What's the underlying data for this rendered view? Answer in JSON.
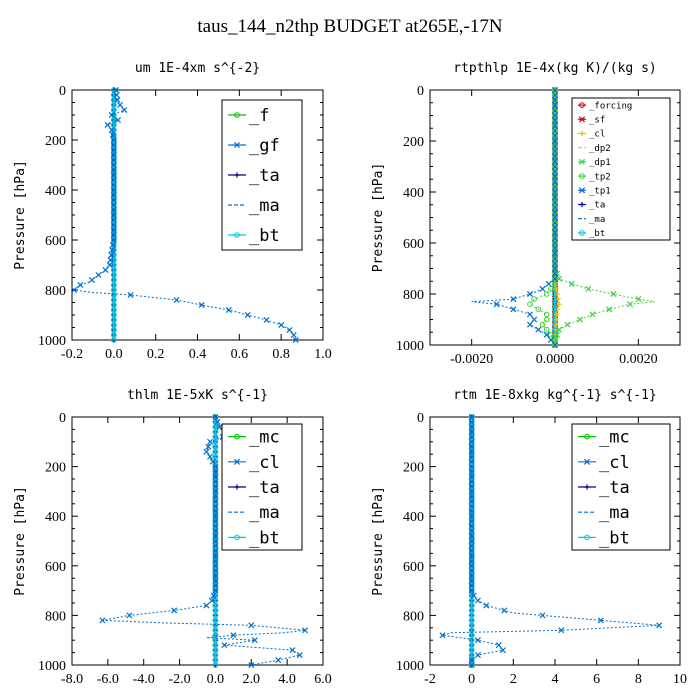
{
  "title": "taus_144_n2thp  BUDGET at265E,-17N",
  "colors": {
    "green": "#00c000",
    "blue": "#0070d0",
    "navy": "#000090",
    "cyan": "#00c8e8",
    "red": "#d00000",
    "yellow": "#f0c000",
    "lightgreen": "#40d040"
  },
  "chart_data": [
    {
      "type": "line",
      "title": "um  1E-4xm s^{-2}",
      "ylabel": "Pressure [hPa]",
      "xlim": [
        -0.2,
        1.0
      ],
      "ylim": [
        1000,
        0
      ],
      "xticks": [
        -0.2,
        0.0,
        0.2,
        0.4,
        0.6,
        0.8,
        1.0
      ],
      "xtick_labels": [
        "-0.2",
        "0.0",
        "0.2",
        "0.4",
        "0.6",
        "0.8",
        "1.0"
      ],
      "yticks": [
        0,
        200,
        400,
        600,
        800,
        1000
      ],
      "ytick_labels": [
        "0",
        "200",
        "400",
        "600",
        "800",
        "1000"
      ],
      "legend_position": "top-right",
      "legend_font": 17,
      "series": [
        {
          "name": "_f",
          "color": "green",
          "marker": "o",
          "y": [
            0,
            1000
          ],
          "x": [
            0,
            0
          ]
        },
        {
          "name": "_gf",
          "color": "blue",
          "marker": "x",
          "y": [
            0,
            50,
            80,
            100,
            120,
            140,
            160,
            200,
            300,
            400,
            500,
            600,
            650,
            700,
            720,
            750,
            770,
            780,
            790,
            800,
            810,
            820,
            840,
            860,
            880,
            900,
            920,
            940,
            960,
            980,
            1000
          ],
          "x": [
            0.01,
            0.02,
            0.05,
            -0.01,
            0.02,
            -0.03,
            -0.01,
            0.0,
            0.0,
            0.0,
            0.0,
            0.0,
            -0.01,
            -0.02,
            -0.04,
            -0.09,
            -0.12,
            -0.16,
            -0.18,
            -0.19,
            -0.1,
            0.08,
            0.3,
            0.42,
            0.55,
            0.64,
            0.73,
            0.8,
            0.84,
            0.86,
            0.87
          ]
        },
        {
          "name": "_ta",
          "color": "navy",
          "marker": "+",
          "y": [
            0,
            1000
          ],
          "x": [
            0,
            0
          ]
        },
        {
          "name": "_ma",
          "color": "blue",
          "marker": "-",
          "y": [
            0,
            1000
          ],
          "x": [
            0,
            0
          ]
        },
        {
          "name": "_bt",
          "color": "cyan",
          "marker": "o",
          "y": [
            0,
            1000
          ],
          "x": [
            0,
            0
          ]
        }
      ]
    },
    {
      "type": "line",
      "title": "rtpthlp  1E-4x(kg K)/(kg s)",
      "ylabel": "Pressure [hPa]",
      "xlim": [
        -0.003,
        0.003
      ],
      "ylim": [
        1000,
        0
      ],
      "xticks": [
        -0.002,
        0.0,
        0.002
      ],
      "xtick_labels": [
        "-0.0020",
        "0.0000",
        "0.0020"
      ],
      "yticks": [
        0,
        200,
        400,
        600,
        800,
        1000
      ],
      "ytick_labels": [
        "0",
        "200",
        "400",
        "600",
        "800",
        "1000"
      ],
      "legend_position": "top-right",
      "legend_font": 9,
      "series": [
        {
          "name": "_forcing",
          "color": "red",
          "marker": "o",
          "y": [
            0,
            1000
          ],
          "x": [
            0,
            0
          ]
        },
        {
          "name": "_sf",
          "color": "red",
          "marker": "x",
          "y": [
            0,
            1000
          ],
          "x": [
            0,
            0
          ]
        },
        {
          "name": "_cl",
          "color": "yellow",
          "marker": "+",
          "y": [
            0,
            760,
            800,
            840,
            880,
            1000
          ],
          "x": [
            0,
            0,
            5e-05,
            0.0001,
            3e-05,
            0
          ]
        },
        {
          "name": "_dp2",
          "color": "yellow",
          "marker": "-",
          "y": [
            0,
            1000
          ],
          "x": [
            0,
            0
          ]
        },
        {
          "name": "_dp1",
          "color": "lightgreen",
          "marker": "x",
          "y": [
            0,
            700,
            740,
            760,
            780,
            800,
            820,
            830,
            840,
            860,
            880,
            900,
            920,
            940,
            960,
            980,
            1000
          ],
          "x": [
            0,
            0,
            0.0001,
            0.0004,
            0.0008,
            0.0014,
            0.002,
            0.0024,
            0.0018,
            0.0013,
            0.0009,
            0.0006,
            0.0003,
            0.0001,
            5e-05,
            0.0,
            0.0
          ]
        },
        {
          "name": "_tp2",
          "color": "lightgreen",
          "marker": "o",
          "y": [
            0,
            760,
            800,
            820,
            840,
            860,
            880,
            900,
            920,
            940,
            960,
            980,
            1000
          ],
          "x": [
            0,
            0,
            -0.0002,
            -0.0005,
            -0.0006,
            -0.0004,
            -0.0002,
            -0.0002,
            -0.0003,
            -0.0002,
            -0.0001,
            0,
            0
          ]
        },
        {
          "name": "_tp1",
          "color": "blue",
          "marker": "x",
          "y": [
            0,
            740,
            780,
            800,
            820,
            830,
            840,
            860,
            880,
            900,
            920,
            940,
            960,
            980,
            1000
          ],
          "x": [
            0,
            0,
            -0.0003,
            -0.0006,
            -0.001,
            -0.002,
            -0.0014,
            -0.001,
            -0.0006,
            -0.0005,
            -0.0006,
            -0.0004,
            -0.0002,
            -0.0001,
            0
          ]
        },
        {
          "name": "_ta",
          "color": "navy",
          "marker": "+",
          "y": [
            0,
            1000
          ],
          "x": [
            0,
            0
          ]
        },
        {
          "name": "_ma",
          "color": "blue",
          "marker": "-",
          "y": [
            0,
            1000
          ],
          "x": [
            0,
            0
          ]
        },
        {
          "name": "_bt",
          "color": "cyan",
          "marker": "o",
          "y": [
            0,
            1000
          ],
          "x": [
            0,
            0
          ]
        }
      ]
    },
    {
      "type": "line",
      "title": "thlm  1E-5xK s^{-1}",
      "ylabel": "Pressure [hPa]",
      "xlim": [
        -8.0,
        6.0
      ],
      "ylim": [
        1000,
        0
      ],
      "xticks": [
        -8.0,
        -6.0,
        -4.0,
        -2.0,
        0.0,
        2.0,
        4.0,
        6.0
      ],
      "xtick_labels": [
        "-8.0",
        "-6.0",
        "-4.0",
        "-2.0",
        "0.0",
        "2.0",
        "4.0",
        "6.0"
      ],
      "yticks": [
        0,
        200,
        400,
        600,
        800,
        1000
      ],
      "ytick_labels": [
        "0",
        "200",
        "400",
        "600",
        "800",
        "1000"
      ],
      "legend_position": "top-right",
      "legend_font": 17,
      "series": [
        {
          "name": "_mc",
          "color": "green",
          "marker": "o",
          "y": [
            0,
            1000
          ],
          "x": [
            0,
            0
          ]
        },
        {
          "name": "_cl",
          "color": "blue",
          "marker": "x",
          "y": [
            0,
            50,
            70,
            80,
            90,
            100,
            120,
            140,
            160,
            200,
            400,
            700,
            740,
            760,
            780,
            800,
            820,
            830,
            840,
            860,
            870,
            880,
            890,
            900,
            920,
            940,
            960,
            980,
            1000
          ],
          "x": [
            0,
            0.3,
            0.7,
            0.4,
            0.1,
            -0.3,
            -0.4,
            -0.5,
            -0.3,
            0,
            0,
            0,
            -0.2,
            -0.5,
            -2.3,
            -4.8,
            -6.3,
            -3,
            2,
            5,
            3.8,
            1,
            -0.5,
            2.2,
            0.5,
            4.3,
            4.7,
            3.5,
            2
          ]
        },
        {
          "name": "_ta",
          "color": "navy",
          "marker": "+",
          "y": [
            0,
            1000
          ],
          "x": [
            0,
            0
          ]
        },
        {
          "name": "_ma",
          "color": "blue",
          "marker": "-",
          "y": [
            0,
            1000
          ],
          "x": [
            0,
            0
          ]
        },
        {
          "name": "_bt",
          "color": "cyan",
          "marker": "o",
          "y": [
            0,
            1000
          ],
          "x": [
            0,
            0
          ]
        }
      ]
    },
    {
      "type": "line",
      "title": "rtm  1E-8xkg kg^{-1} s^{-1}",
      "ylabel": "Pressure [hPa]",
      "xlim": [
        -2,
        10
      ],
      "ylim": [
        1000,
        0
      ],
      "xticks": [
        -2,
        0,
        2,
        4,
        6,
        8,
        10
      ],
      "xtick_labels": [
        "-2",
        "0",
        "2",
        "4",
        "6",
        "8",
        "10"
      ],
      "yticks": [
        0,
        200,
        400,
        600,
        800,
        1000
      ],
      "ytick_labels": [
        "0",
        "200",
        "400",
        "600",
        "800",
        "1000"
      ],
      "legend_position": "top-right",
      "legend_font": 17,
      "series": [
        {
          "name": "_mc",
          "color": "green",
          "marker": "o",
          "y": [
            0,
            1000
          ],
          "x": [
            0,
            0
          ]
        },
        {
          "name": "_cl",
          "color": "blue",
          "marker": "x",
          "y": [
            0,
            700,
            720,
            740,
            760,
            790,
            820,
            840,
            860,
            870,
            880,
            900,
            920,
            940,
            960,
            980,
            1000
          ],
          "x": [
            0,
            0,
            0.1,
            0.3,
            0.7,
            2,
            6.2,
            9,
            4.3,
            -1,
            -1.4,
            0.3,
            1.3,
            1.5,
            0.3,
            0,
            0
          ]
        },
        {
          "name": "_ta",
          "color": "navy",
          "marker": "+",
          "y": [
            0,
            1000
          ],
          "x": [
            0,
            0
          ]
        },
        {
          "name": "_ma",
          "color": "blue",
          "marker": "-",
          "y": [
            0,
            1000
          ],
          "x": [
            0,
            0
          ]
        },
        {
          "name": "_bt",
          "color": "cyan",
          "marker": "o",
          "y": [
            0,
            1000
          ],
          "x": [
            0,
            0
          ]
        }
      ]
    }
  ]
}
